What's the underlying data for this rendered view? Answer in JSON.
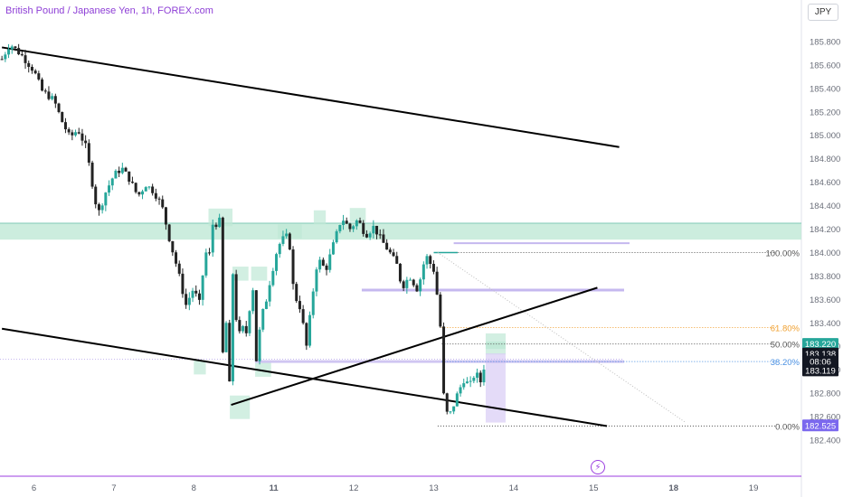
{
  "header": {
    "title": "British Pound / Japanese Yen, 1h, FOREX.com",
    "currency": "JPY"
  },
  "colors": {
    "up": "#26a69a",
    "down": "#222222",
    "zone": "#bfe8d6",
    "fib": "#9e9e9e",
    "fib618": "#f0a030",
    "fib382": "#4a90e2",
    "title": "#8e3fd6",
    "current_price_bg": "#131722",
    "price_tag_up": "#26a69a",
    "price_tag_low": "#7b68ee"
  },
  "icons": {
    "flash": "lightning-bolt-icon"
  },
  "chart_data": {
    "type": "candlestick",
    "ylim": [
      182.3,
      186.0
    ],
    "y_ticks": [
      "182.400",
      "182.600",
      "182.800",
      "183.000",
      "183.200",
      "183.400",
      "183.600",
      "183.800",
      "184.000",
      "184.200",
      "184.400",
      "184.600",
      "184.800",
      "185.000",
      "185.200",
      "185.400",
      "185.600",
      "185.800"
    ],
    "x_ticks": [
      {
        "label": "6",
        "day": 6,
        "bold": false
      },
      {
        "label": "7",
        "day": 7,
        "bold": false
      },
      {
        "label": "8",
        "day": 8,
        "bold": false
      },
      {
        "label": "11",
        "day": 11,
        "bold": true
      },
      {
        "label": "12",
        "day": 12,
        "bold": false
      },
      {
        "label": "13",
        "day": 13,
        "bold": false
      },
      {
        "label": "14",
        "day": 14,
        "bold": false
      },
      {
        "label": "15",
        "day": 15,
        "bold": false
      },
      {
        "label": "18",
        "day": 18,
        "bold": true
      },
      {
        "label": "19",
        "day": 19,
        "bold": false
      }
    ],
    "price_path": [
      [
        5.6,
        185.65
      ],
      [
        5.7,
        185.78
      ],
      [
        5.85,
        185.68
      ],
      [
        6.0,
        185.55
      ],
      [
        6.1,
        185.38
      ],
      [
        6.25,
        185.3
      ],
      [
        6.35,
        185.12
      ],
      [
        6.45,
        184.98
      ],
      [
        6.55,
        185.05
      ],
      [
        6.65,
        184.9
      ],
      [
        6.8,
        184.32
      ],
      [
        6.9,
        184.52
      ],
      [
        7.0,
        184.66
      ],
      [
        7.1,
        184.72
      ],
      [
        7.2,
        184.62
      ],
      [
        7.3,
        184.48
      ],
      [
        7.4,
        184.58
      ],
      [
        7.5,
        184.52
      ],
      [
        7.6,
        184.4
      ],
      [
        7.7,
        184.1
      ],
      [
        7.8,
        183.85
      ],
      [
        7.9,
        183.55
      ],
      [
        8.0,
        183.7
      ],
      [
        8.1,
        183.62
      ],
      [
        8.2,
        183.55
      ],
      [
        8.3,
        183.75
      ],
      [
        8.4,
        183.92
      ],
      [
        8.5,
        184.05
      ],
      [
        8.55,
        183.88
      ],
      [
        8.65,
        184.18
      ],
      [
        8.75,
        184.28
      ],
      [
        8.85,
        184.24
      ],
      [
        8.95,
        184.32
      ],
      [
        9.0,
        184.1
      ],
      [
        9.05,
        183.4
      ],
      [
        9.1,
        183.05
      ],
      [
        9.15,
        183.55
      ],
      [
        9.2,
        183.45
      ],
      [
        9.25,
        183.25
      ],
      [
        9.3,
        182.95
      ],
      [
        9.35,
        182.85
      ],
      [
        9.4,
        183.3
      ],
      [
        9.45,
        183.85
      ],
      [
        9.5,
        183.75
      ],
      [
        9.55,
        183.5
      ],
      [
        9.65,
        183.35
      ],
      [
        9.75,
        183.28
      ],
      [
        9.85,
        183.36
      ],
      [
        9.95,
        183.3
      ],
      [
        10.05,
        183.4
      ],
      [
        10.15,
        183.7
      ],
      [
        10.2,
        183.85
      ],
      [
        10.25,
        183.4
      ],
      [
        10.3,
        182.98
      ],
      [
        10.35,
        183.1
      ],
      [
        10.45,
        183.3
      ],
      [
        10.55,
        183.45
      ],
      [
        10.65,
        183.55
      ],
      [
        10.75,
        183.62
      ],
      [
        10.85,
        183.75
      ],
      [
        10.95,
        183.85
      ],
      [
        11.05,
        184.05
      ],
      [
        11.15,
        184.15
      ],
      [
        11.2,
        184.05
      ],
      [
        11.25,
        183.65
      ],
      [
        11.35,
        183.5
      ],
      [
        11.4,
        183.15
      ],
      [
        11.5,
        183.72
      ],
      [
        11.55,
        183.95
      ],
      [
        11.65,
        183.85
      ],
      [
        11.75,
        184.08
      ],
      [
        11.85,
        184.3
      ],
      [
        11.95,
        184.2
      ],
      [
        12.05,
        184.28
      ],
      [
        12.15,
        184.15
      ],
      [
        12.25,
        184.22
      ],
      [
        12.35,
        184.1
      ],
      [
        12.45,
        184.0
      ],
      [
        12.55,
        183.88
      ],
      [
        12.6,
        183.7
      ],
      [
        12.7,
        183.8
      ],
      [
        12.8,
        183.68
      ],
      [
        12.9,
        183.98
      ],
      [
        13.0,
        183.85
      ],
      [
        13.05,
        183.6
      ],
      [
        13.1,
        183.25
      ],
      [
        13.12,
        182.8
      ],
      [
        13.18,
        182.58
      ],
      [
        13.25,
        182.7
      ],
      [
        13.3,
        182.8
      ],
      [
        13.38,
        182.92
      ],
      [
        13.45,
        182.86
      ],
      [
        13.52,
        182.98
      ],
      [
        13.6,
        182.88
      ],
      [
        13.65,
        183.14
      ]
    ],
    "candle_seed": 7,
    "channel_upper": [
      [
        5.6,
        185.75
      ],
      [
        15.96,
        184.9
      ]
    ],
    "channel_lower": [
      [
        5.6,
        183.35
      ],
      [
        15.5,
        182.52
      ]
    ],
    "trend_support": [
      [
        9.4,
        182.7
      ],
      [
        15.14,
        183.7
      ]
    ],
    "support_zone": [
      184.11,
      184.25
    ],
    "fib_levels": [
      {
        "label": "100.00%",
        "price": 184.0,
        "color": "#555555"
      },
      {
        "label": "61.80%",
        "price": 183.36,
        "color": "#f0a030"
      },
      {
        "label": "50.00%",
        "price": 183.22,
        "color": "#555555"
      },
      {
        "label": "38.20%",
        "price": 183.07,
        "color": "#4a90e2"
      },
      {
        "label": "0.00%",
        "price": 182.52,
        "color": "#555555"
      }
    ],
    "price_tags": [
      {
        "label": "183.220",
        "price": 183.22,
        "bg": "#26a69a",
        "fg": "#ffffff"
      },
      {
        "label": "183.138",
        "price": 183.138,
        "bg": "#131722",
        "fg": "#ffffff"
      },
      {
        "label": "08:06",
        "price": 183.07,
        "bg": "#131722",
        "fg": "#ffffff"
      },
      {
        "label": "183.119",
        "price": 182.995,
        "bg": "#131722",
        "fg": "#ffffff"
      },
      {
        "label": "182.525",
        "price": 182.525,
        "bg": "#7b68ee",
        "fg": "#ffffff"
      }
    ]
  }
}
